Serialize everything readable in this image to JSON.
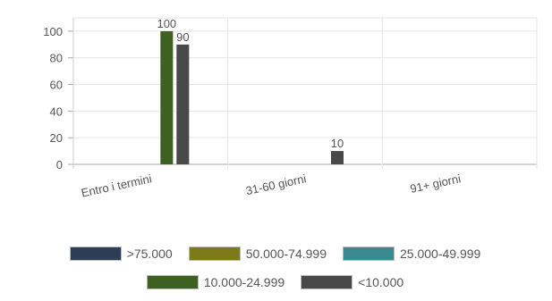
{
  "chart_data": {
    "type": "bar",
    "categories": [
      "Entro i termini",
      "31-60 giorni",
      "91+ giorni"
    ],
    "series": [
      {
        "name": ">75.000",
        "color": "#2c3e55",
        "values": [
          0,
          0,
          0
        ]
      },
      {
        "name": "50.000-74.999",
        "color": "#7b7a16",
        "values": [
          0,
          0,
          0
        ]
      },
      {
        "name": "25.000-49.999",
        "color": "#3a8b8f",
        "values": [
          0,
          0,
          0
        ]
      },
      {
        "name": "10.000-24.999",
        "color": "#3e6020",
        "values": [
          100,
          0,
          0
        ]
      },
      {
        "name": "<10.000",
        "color": "#484848",
        "values": [
          90,
          10,
          0
        ]
      }
    ],
    "data_labels": [
      {
        "category": "Entro i termini",
        "series": "10.000-24.999",
        "text": "100"
      },
      {
        "category": "Entro i termini",
        "series": "<10.000",
        "text": "90"
      },
      {
        "category": "31-60 giorni",
        "series": "<10.000",
        "text": "10"
      }
    ],
    "yticks": [
      0,
      20,
      40,
      60,
      80,
      100
    ],
    "ylim": [
      0,
      110
    ],
    "grid": true,
    "legend_position": "bottom"
  }
}
